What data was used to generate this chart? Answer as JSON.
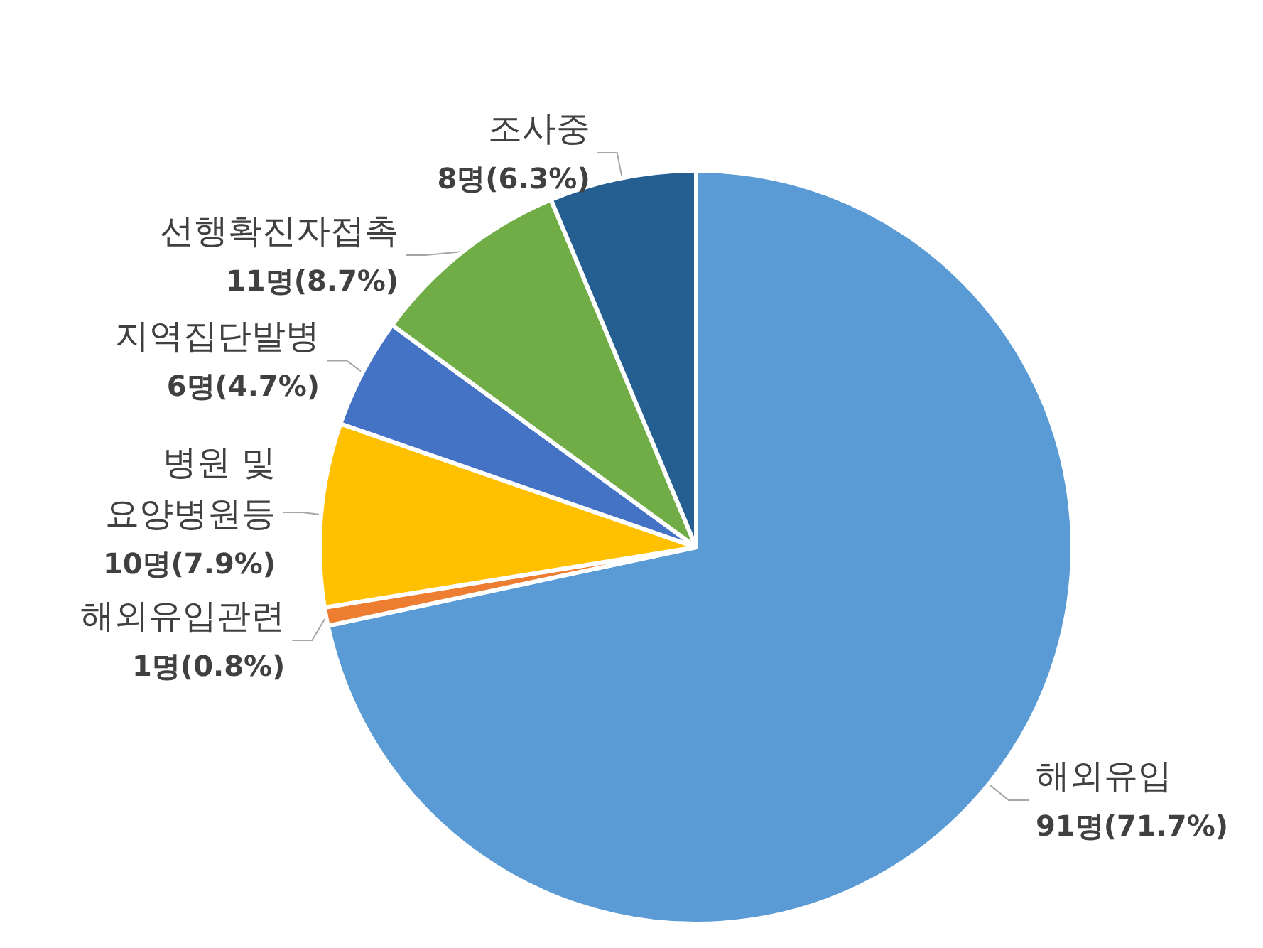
{
  "chart_data": {
    "type": "pie",
    "categories": [
      "해외유입",
      "해외유입관련",
      "병원 및\n요양병원등",
      "지역집단발병",
      "선행확진자접촉",
      "조사중"
    ],
    "values": [
      91,
      1,
      10,
      6,
      11,
      8
    ],
    "colors": [
      "#5b9bd5",
      "#ed7d31",
      "#ffc000",
      "#4472c4",
      "#70ad47",
      "#255e91"
    ],
    "value_labels": [
      "91명(71.7%)",
      "1명(0.8%)",
      "10명(7.9%)",
      "6명(4.7%)",
      "11명(8.7%)",
      "8명(6.3%)"
    ],
    "legend": false
  }
}
